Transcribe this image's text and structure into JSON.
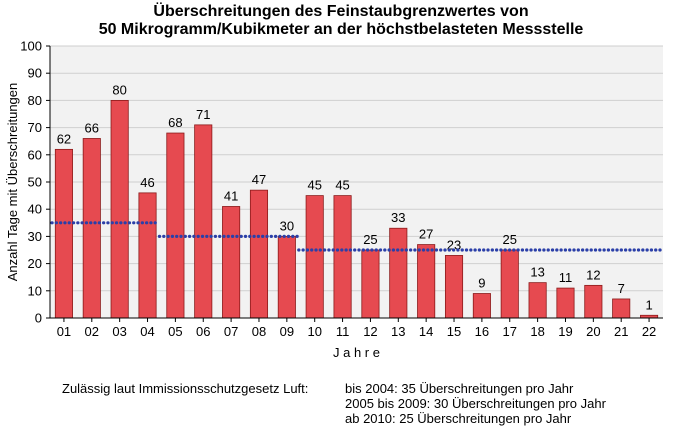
{
  "chart_data": {
    "type": "bar",
    "title": [
      "Überschreitungen des Feinstaubgrenzwertes von",
      "50 Mikrogramm/Kubikmeter an der höchstbelasteten Messstelle"
    ],
    "xlabel": "J a h r e",
    "ylabel": "Anzahl Tage mit Überschreitungen",
    "categories": [
      "01",
      "02",
      "03",
      "04",
      "05",
      "06",
      "07",
      "08",
      "09",
      "10",
      "11",
      "12",
      "13",
      "14",
      "15",
      "16",
      "17",
      "18",
      "19",
      "20",
      "21",
      "22"
    ],
    "values": [
      62,
      66,
      80,
      46,
      68,
      71,
      41,
      47,
      30,
      45,
      45,
      25,
      33,
      27,
      23,
      9,
      25,
      13,
      11,
      12,
      7,
      1
    ],
    "ylim": [
      0,
      100
    ],
    "yticks": [
      0,
      10,
      20,
      30,
      40,
      50,
      60,
      70,
      80,
      90,
      100
    ],
    "grid": true,
    "bar_color": "#e64a50",
    "bar_edge_color": "#8b1a1a",
    "limit_color": "#2b3fa8",
    "limits": [
      {
        "from": "01",
        "to": "04",
        "value": 35
      },
      {
        "from": "05",
        "to": "09",
        "value": 30
      },
      {
        "from": "10",
        "to": "22",
        "value": 25
      }
    ]
  },
  "note": {
    "label": "Zulässig laut Immissionsschutzgesetz Luft:",
    "lines": [
      "bis 2004: 35 Überschreitungen pro Jahr",
      "2005 bis 2009: 30 Überschreitungen pro Jahr",
      "ab 2010: 25 Überschreitungen pro Jahr"
    ]
  }
}
